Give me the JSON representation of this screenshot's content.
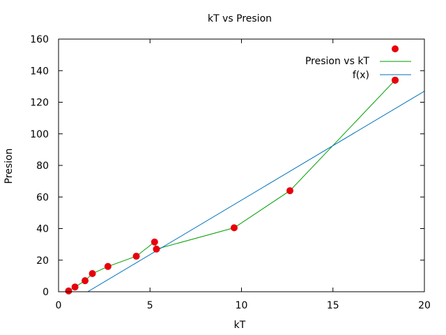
{
  "chart_data": {
    "type": "scatter",
    "title": "kT vs Presion",
    "xlabel": "kT",
    "ylabel": "Presion",
    "xlim": [
      0,
      20
    ],
    "ylim": [
      0,
      160
    ],
    "xticks": [
      0,
      5,
      10,
      15,
      20
    ],
    "yticks": [
      0,
      20,
      40,
      60,
      80,
      100,
      120,
      140,
      160
    ],
    "grid": false,
    "legend_position": "top-right",
    "series": [
      {
        "name": "Presion vs kT",
        "style": "points-and-line",
        "point_color": "#e8000b",
        "line_color": "#009e00",
        "x": [
          0.55,
          0.9,
          1.45,
          1.85,
          2.7,
          4.25,
          5.25,
          5.35,
          9.6,
          12.65,
          18.4
        ],
        "y": [
          0.5,
          3,
          7,
          11.5,
          16,
          22.5,
          31.5,
          27,
          40.5,
          64,
          134
        ]
      },
      {
        "name": "f(x)",
        "style": "line",
        "line_color": "#0072bd",
        "slope": 6.9,
        "intercept": -11,
        "x_range": [
          0,
          20
        ]
      }
    ]
  }
}
